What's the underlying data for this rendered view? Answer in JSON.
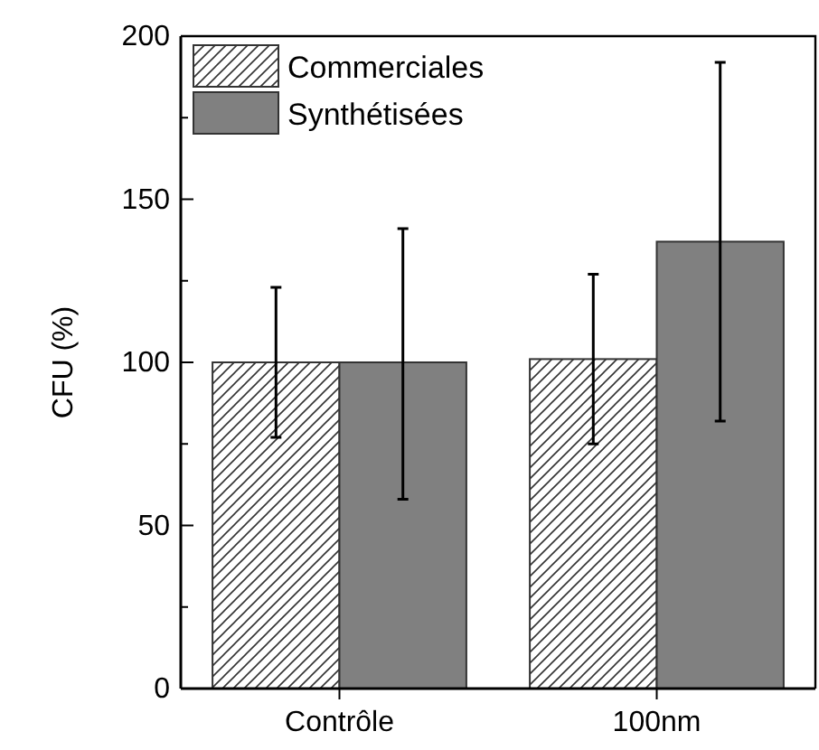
{
  "chart_data": {
    "type": "bar",
    "ylabel": "CFU (%)",
    "categories": [
      "Contrôle",
      "100nm"
    ],
    "series": [
      {
        "name": "Commerciales",
        "color": "#333333",
        "values": [
          100,
          101
        ],
        "errors": [
          [
            77,
            123
          ],
          [
            75,
            127
          ]
        ]
      },
      {
        "name": "Synthétisées",
        "color": "#808080",
        "values": [
          100,
          137
        ],
        "errors": [
          [
            58,
            141
          ],
          [
            82,
            192
          ]
        ]
      }
    ],
    "ylim": [
      0,
      200
    ],
    "yticks": [
      0,
      {
        "value": 25,
        "label": null
      },
      50,
      {
        "value": 75,
        "label": null
      },
      100,
      {
        "value": 125,
        "label": null
      },
      150,
      {
        "value": 175,
        "label": null
      },
      200
    ],
    "legend": "top left",
    "grid": false
  }
}
